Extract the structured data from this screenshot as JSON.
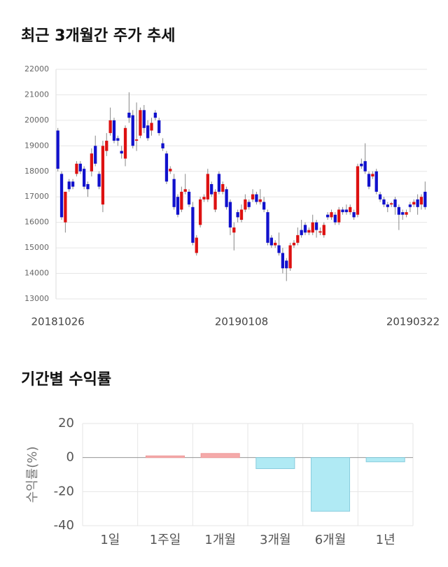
{
  "chart_data": [
    {
      "type": "candlestick",
      "title": "최근 3개월간 주가 추세",
      "categories": [
        "20181026",
        null,
        null,
        null,
        null,
        null,
        null,
        null,
        null,
        null,
        null,
        null,
        null,
        null,
        null,
        null,
        null,
        null,
        null,
        null,
        null,
        null,
        null,
        null,
        null,
        null,
        null,
        null,
        null,
        null,
        null,
        null,
        null,
        null,
        null,
        null,
        null,
        null,
        null,
        null,
        null,
        null,
        null,
        null,
        null,
        null,
        null,
        null,
        null,
        "20190108",
        null,
        null,
        null,
        null,
        null,
        null,
        null,
        null,
        null,
        null,
        null,
        null,
        null,
        null,
        null,
        null,
        null,
        null,
        null,
        null,
        null,
        null,
        null,
        null,
        null,
        null,
        null,
        null,
        null,
        null,
        null,
        null,
        null,
        null,
        null,
        null,
        null,
        null,
        null,
        null,
        null,
        null,
        null,
        null,
        null,
        null,
        null,
        null,
        "20190322"
      ],
      "open": [
        19600,
        17900,
        16000,
        17600,
        17600,
        17900,
        18300,
        18100,
        17500,
        18000,
        19000,
        17900,
        16700,
        18800,
        19500,
        20000,
        19300,
        18800,
        18500,
        20300,
        20200,
        19200,
        19400,
        20400,
        19800,
        19600,
        20300,
        20000,
        19100,
        18700,
        18000,
        17700,
        17000,
        16500,
        17200,
        17200,
        16600,
        14800,
        15900,
        16900,
        16900,
        17500,
        16500,
        17900,
        17200,
        17300,
        16800,
        15600,
        16400,
        16100,
        16500,
        16800,
        16900,
        17100,
        16800,
        16800,
        16400,
        15400,
        15100,
        15100,
        14800,
        14500,
        14200,
        15100,
        15200,
        15700,
        15900,
        15600,
        15600,
        16000,
        15600,
        15500,
        16300,
        16200,
        16300,
        16000,
        16500,
        16500,
        16400,
        16400,
        16300,
        18300,
        18400,
        17900,
        17800,
        18000,
        17100,
        16900,
        16700,
        16700,
        16900,
        16600,
        16400,
        16300,
        16700,
        16700,
        16900,
        16700,
        17200
      ],
      "high": [
        19700,
        18000,
        17200,
        17700,
        17700,
        18400,
        18400,
        18200,
        17600,
        18900,
        19400,
        18000,
        19200,
        19500,
        20500,
        20100,
        19400,
        19000,
        19800,
        21100,
        20400,
        20700,
        20500,
        20600,
        20000,
        20100,
        20400,
        20100,
        19300,
        18800,
        18200,
        17900,
        17100,
        17400,
        17900,
        17300,
        16800,
        15500,
        17000,
        17100,
        18100,
        17600,
        17300,
        18000,
        17600,
        17400,
        16900,
        16000,
        16500,
        16700,
        17100,
        16900,
        17300,
        17200,
        17300,
        17000,
        16500,
        15500,
        15300,
        15600,
        15000,
        14600,
        15200,
        15300,
        15800,
        16100,
        16000,
        15800,
        16300,
        16100,
        15800,
        16000,
        16400,
        16500,
        16400,
        16600,
        16600,
        16700,
        16700,
        16500,
        18300,
        18500,
        19100,
        18000,
        18000,
        18100,
        17200,
        17000,
        16800,
        16800,
        17000,
        16700,
        16500,
        16500,
        16800,
        16900,
        17100,
        17100,
        17600
      ],
      "low": [
        18000,
        16100,
        15600,
        17200,
        17300,
        17800,
        17900,
        17300,
        17000,
        17800,
        18200,
        17300,
        16400,
        18600,
        19400,
        19100,
        19000,
        18500,
        18200,
        19900,
        18900,
        18800,
        19300,
        19500,
        19200,
        19400,
        20000,
        19400,
        18800,
        17500,
        17900,
        16500,
        16200,
        16400,
        17100,
        16600,
        15100,
        14700,
        15800,
        16800,
        16800,
        17000,
        16400,
        17100,
        17100,
        16500,
        15500,
        14900,
        16000,
        16000,
        16400,
        16500,
        16800,
        16700,
        16700,
        16400,
        15100,
        15000,
        15000,
        14700,
        14000,
        13700,
        14100,
        15000,
        15100,
        15400,
        15500,
        15500,
        15500,
        15400,
        15500,
        15400,
        16100,
        16100,
        15900,
        15900,
        16300,
        16300,
        16300,
        16100,
        16200,
        18100,
        17900,
        17300,
        17700,
        17100,
        16800,
        16600,
        16400,
        16600,
        16300,
        15700,
        16100,
        16200,
        16400,
        16600,
        16300,
        16500,
        16500
      ],
      "close": [
        18100,
        16200,
        17200,
        17300,
        17400,
        18300,
        18000,
        17400,
        17300,
        18700,
        18300,
        17400,
        19000,
        19200,
        20000,
        19200,
        19200,
        18700,
        19700,
        20100,
        19000,
        19250,
        20400,
        19700,
        19300,
        19900,
        20100,
        19500,
        18900,
        17600,
        18100,
        16600,
        16300,
        17200,
        17300,
        16700,
        15200,
        15400,
        16900,
        17000,
        17900,
        17100,
        17200,
        17200,
        17500,
        16600,
        15800,
        15800,
        16200,
        16500,
        16900,
        16600,
        17100,
        16800,
        16900,
        16500,
        15200,
        15100,
        15200,
        14800,
        14200,
        14200,
        15100,
        15200,
        15500,
        15500,
        15600,
        15700,
        16000,
        15700,
        15650,
        15900,
        16200,
        16400,
        16000,
        16500,
        16400,
        16400,
        16600,
        16200,
        18200,
        18200,
        18000,
        17400,
        17900,
        17200,
        16900,
        16700,
        16600,
        16750,
        16600,
        16300,
        16300,
        16400,
        16600,
        16800,
        16600,
        17000,
        16600
      ],
      "up_color": "#dd1111",
      "down_color": "#1111cc",
      "ylim": [
        13000,
        22000
      ],
      "yticks": [
        13000,
        14000,
        15000,
        16000,
        17000,
        18000,
        19000,
        20000,
        21000,
        22000
      ],
      "grid": true
    },
    {
      "type": "bar",
      "title": "기간별 수익률",
      "y_label": "수익률(%)",
      "categories": [
        "1일",
        "1주일",
        "1개월",
        "3개월",
        "6개월",
        "1년"
      ],
      "values": [
        0,
        1,
        2.4,
        -6.5,
        -31.5,
        -2.5
      ],
      "positive_color": "#f5aaaa",
      "negative_color": "#b0eaf4",
      "ylim": [
        -40,
        20
      ],
      "yticks": [
        -40,
        -20,
        0,
        20
      ],
      "grid": true
    }
  ]
}
